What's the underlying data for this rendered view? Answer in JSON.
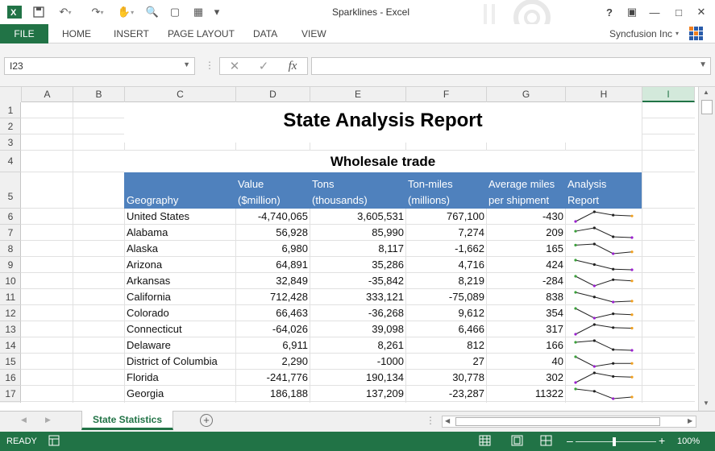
{
  "window": {
    "title": "Sparklines - Excel"
  },
  "quick_access": {
    "save_icon": "save-icon",
    "undo_icon": "undo-icon",
    "redo_icon": "redo-icon",
    "touch_icon": "touch-mode-icon"
  },
  "ribbon": {
    "file": "FILE",
    "tabs": [
      "HOME",
      "INSERT",
      "PAGE LAYOUT",
      "DATA",
      "VIEW"
    ],
    "account": "Syncfusion Inc",
    "help": "?"
  },
  "formula_bar": {
    "name_box": "I23",
    "fx": "fx",
    "value": ""
  },
  "columns": [
    "A",
    "B",
    "C",
    "D",
    "E",
    "F",
    "G",
    "H",
    "I"
  ],
  "selected_column": "I",
  "rows": [
    "1",
    "2",
    "3",
    "4",
    "5",
    "6",
    "7",
    "8",
    "9",
    "10",
    "11",
    "12",
    "13",
    "14",
    "15",
    "16",
    "17"
  ],
  "report": {
    "title": "State Analysis Report",
    "subtitle": "Wholesale trade"
  },
  "table_headers": {
    "geography": "Geography",
    "value_1": "Value",
    "value_2": "($million)",
    "tons_1": "Tons",
    "tons_2": "(thousands)",
    "tonmiles_1": "Ton-miles",
    "tonmiles_2": "(millions)",
    "avg_1": "Average miles",
    "avg_2": "per shipment",
    "analysis_1": "Analysis",
    "analysis_2": "Report"
  },
  "table_rows": [
    {
      "geo": "United States",
      "value": "-4,740,065",
      "tons": "3,605,531",
      "tonmiles": "767,100",
      "avg": "-430",
      "spark": [
        -4740065,
        3605531,
        767100,
        -430
      ]
    },
    {
      "geo": "Alabama",
      "value": "56,928",
      "tons": "85,990",
      "tonmiles": "7,274",
      "avg": "209",
      "spark": [
        56928,
        85990,
        7274,
        209
      ]
    },
    {
      "geo": "Alaska",
      "value": "6,980",
      "tons": "8,117",
      "tonmiles": "-1,662",
      "avg": "165",
      "spark": [
        6980,
        8117,
        -1662,
        165
      ]
    },
    {
      "geo": "Arizona",
      "value": "64,891",
      "tons": "35,286",
      "tonmiles": "4,716",
      "avg": "424",
      "spark": [
        64891,
        35286,
        4716,
        424
      ]
    },
    {
      "geo": "Arkansas",
      "value": "32,849",
      "tons": "-35,842",
      "tonmiles": "8,219",
      "avg": "-284",
      "spark": [
        32849,
        -35842,
        8219,
        -284
      ]
    },
    {
      "geo": "California",
      "value": "712,428",
      "tons": "333,121",
      "tonmiles": "-75,089",
      "avg": "838",
      "spark": [
        712428,
        333121,
        -75089,
        838
      ]
    },
    {
      "geo": "Colorado",
      "value": "66,463",
      "tons": "-36,268",
      "tonmiles": "9,612",
      "avg": "354",
      "spark": [
        66463,
        -36268,
        9612,
        354
      ]
    },
    {
      "geo": "Connecticut",
      "value": "-64,026",
      "tons": "39,098",
      "tonmiles": "6,466",
      "avg": "317",
      "spark": [
        -64026,
        39098,
        6466,
        317
      ]
    },
    {
      "geo": "Delaware",
      "value": "6,911",
      "tons": "8,261",
      "tonmiles": "812",
      "avg": "166",
      "spark": [
        6911,
        8261,
        812,
        166
      ]
    },
    {
      "geo": "District of Columbia",
      "value": "2,290",
      "tons": "-1000",
      "tonmiles": "27",
      "avg": "40",
      "spark": [
        2290,
        -1000,
        27,
        40
      ]
    },
    {
      "geo": "Florida",
      "value": "-241,776",
      "tons": "190,134",
      "tonmiles": "30,778",
      "avg": "302",
      "spark": [
        -241776,
        190134,
        30778,
        302
      ]
    },
    {
      "geo": "Georgia",
      "value": "186,188",
      "tons": "137,209",
      "tonmiles": "-23,287",
      "avg": "11322",
      "spark": [
        186188,
        137209,
        -23287,
        11322
      ]
    }
  ],
  "sparkline_colors": {
    "line": "#222222",
    "low": "#9b1fd0",
    "first": "#3aa03a",
    "last": "#f0a020",
    "mid": "#222222"
  },
  "sheet_tabs": [
    "State Statistics"
  ],
  "status": {
    "mode": "READY",
    "zoom": "100%"
  },
  "colors": {
    "excel_green": "#217346",
    "header_blue": "#4f81bd"
  }
}
